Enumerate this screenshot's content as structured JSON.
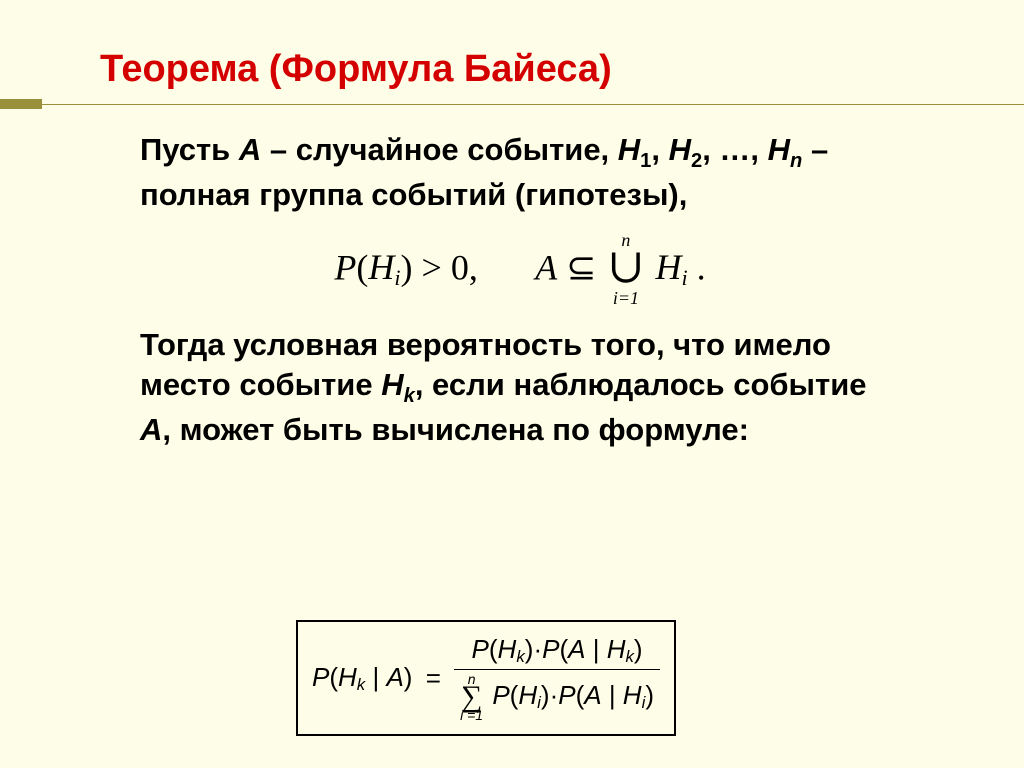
{
  "colors": {
    "background": "#fefee8",
    "title": "#d40000",
    "accent": "#9a8f3a",
    "text": "#000000",
    "box_border": "#000000"
  },
  "title": "Теорема (Формула Байеса)",
  "para1_a": "Пусть ",
  "para1_A": "A",
  "para1_b": " – случайное событие, ",
  "para1_H1": "H",
  "para1_H1s": "1",
  "para1_c": ", ",
  "para1_H2": "H",
  "para1_H2s": "2",
  "para1_d": ", …, ",
  "para1_Hn": "H",
  "para1_Hns": "n",
  "para1_e": "  – полная группа событий (гипотезы),",
  "formula1": {
    "P": "P",
    "lp": "(",
    "Hi": "H",
    "Hi_s": "i",
    "rp": ")",
    "gt": " > 0,",
    "A": "A",
    "subset": " ⊆ ",
    "union_upper": "n",
    "union_symbol": "∪",
    "union_lower": "i=1",
    "H2": "H",
    "H2_s": "i",
    "dot": " ."
  },
  "para2_a": "Тогда условная вероятность того, что имело место событие ",
  "para2_Hk": "H",
  "para2_Hks": "k",
  "para2_b": ", если наблюдалось событие ",
  "para2_A": "A",
  "para2_c": ", может быть вычислена по формуле:",
  "bayes": {
    "lhs_P": "P",
    "lhs_lp": "(",
    "lhs_H": "H",
    "lhs_Hs": "k",
    "lhs_bar": " | ",
    "lhs_A": "A",
    "lhs_rp": ")",
    "eq": "=",
    "num_P1": "P",
    "num_lp1": "(",
    "num_H": "H",
    "num_Hs": "k",
    "num_rp1": ")",
    "num_dot": "·",
    "num_P2": "P",
    "num_lp2": "(",
    "num_A": "A",
    "num_bar": " | ",
    "num_H2": "H",
    "num_H2s": "k",
    "num_rp2": ")",
    "den_sup": "n",
    "den_sigma": "∑",
    "den_sub": "i =1",
    "den_P1": "P",
    "den_lp1": "(",
    "den_H": "H",
    "den_Hs": "i",
    "den_rp1": ")",
    "den_dot": "·",
    "den_P2": "P",
    "den_lp2": "(",
    "den_A": "A",
    "den_bar": " | ",
    "den_H2": "H",
    "den_H2s": "i",
    "den_rp2": ")"
  }
}
